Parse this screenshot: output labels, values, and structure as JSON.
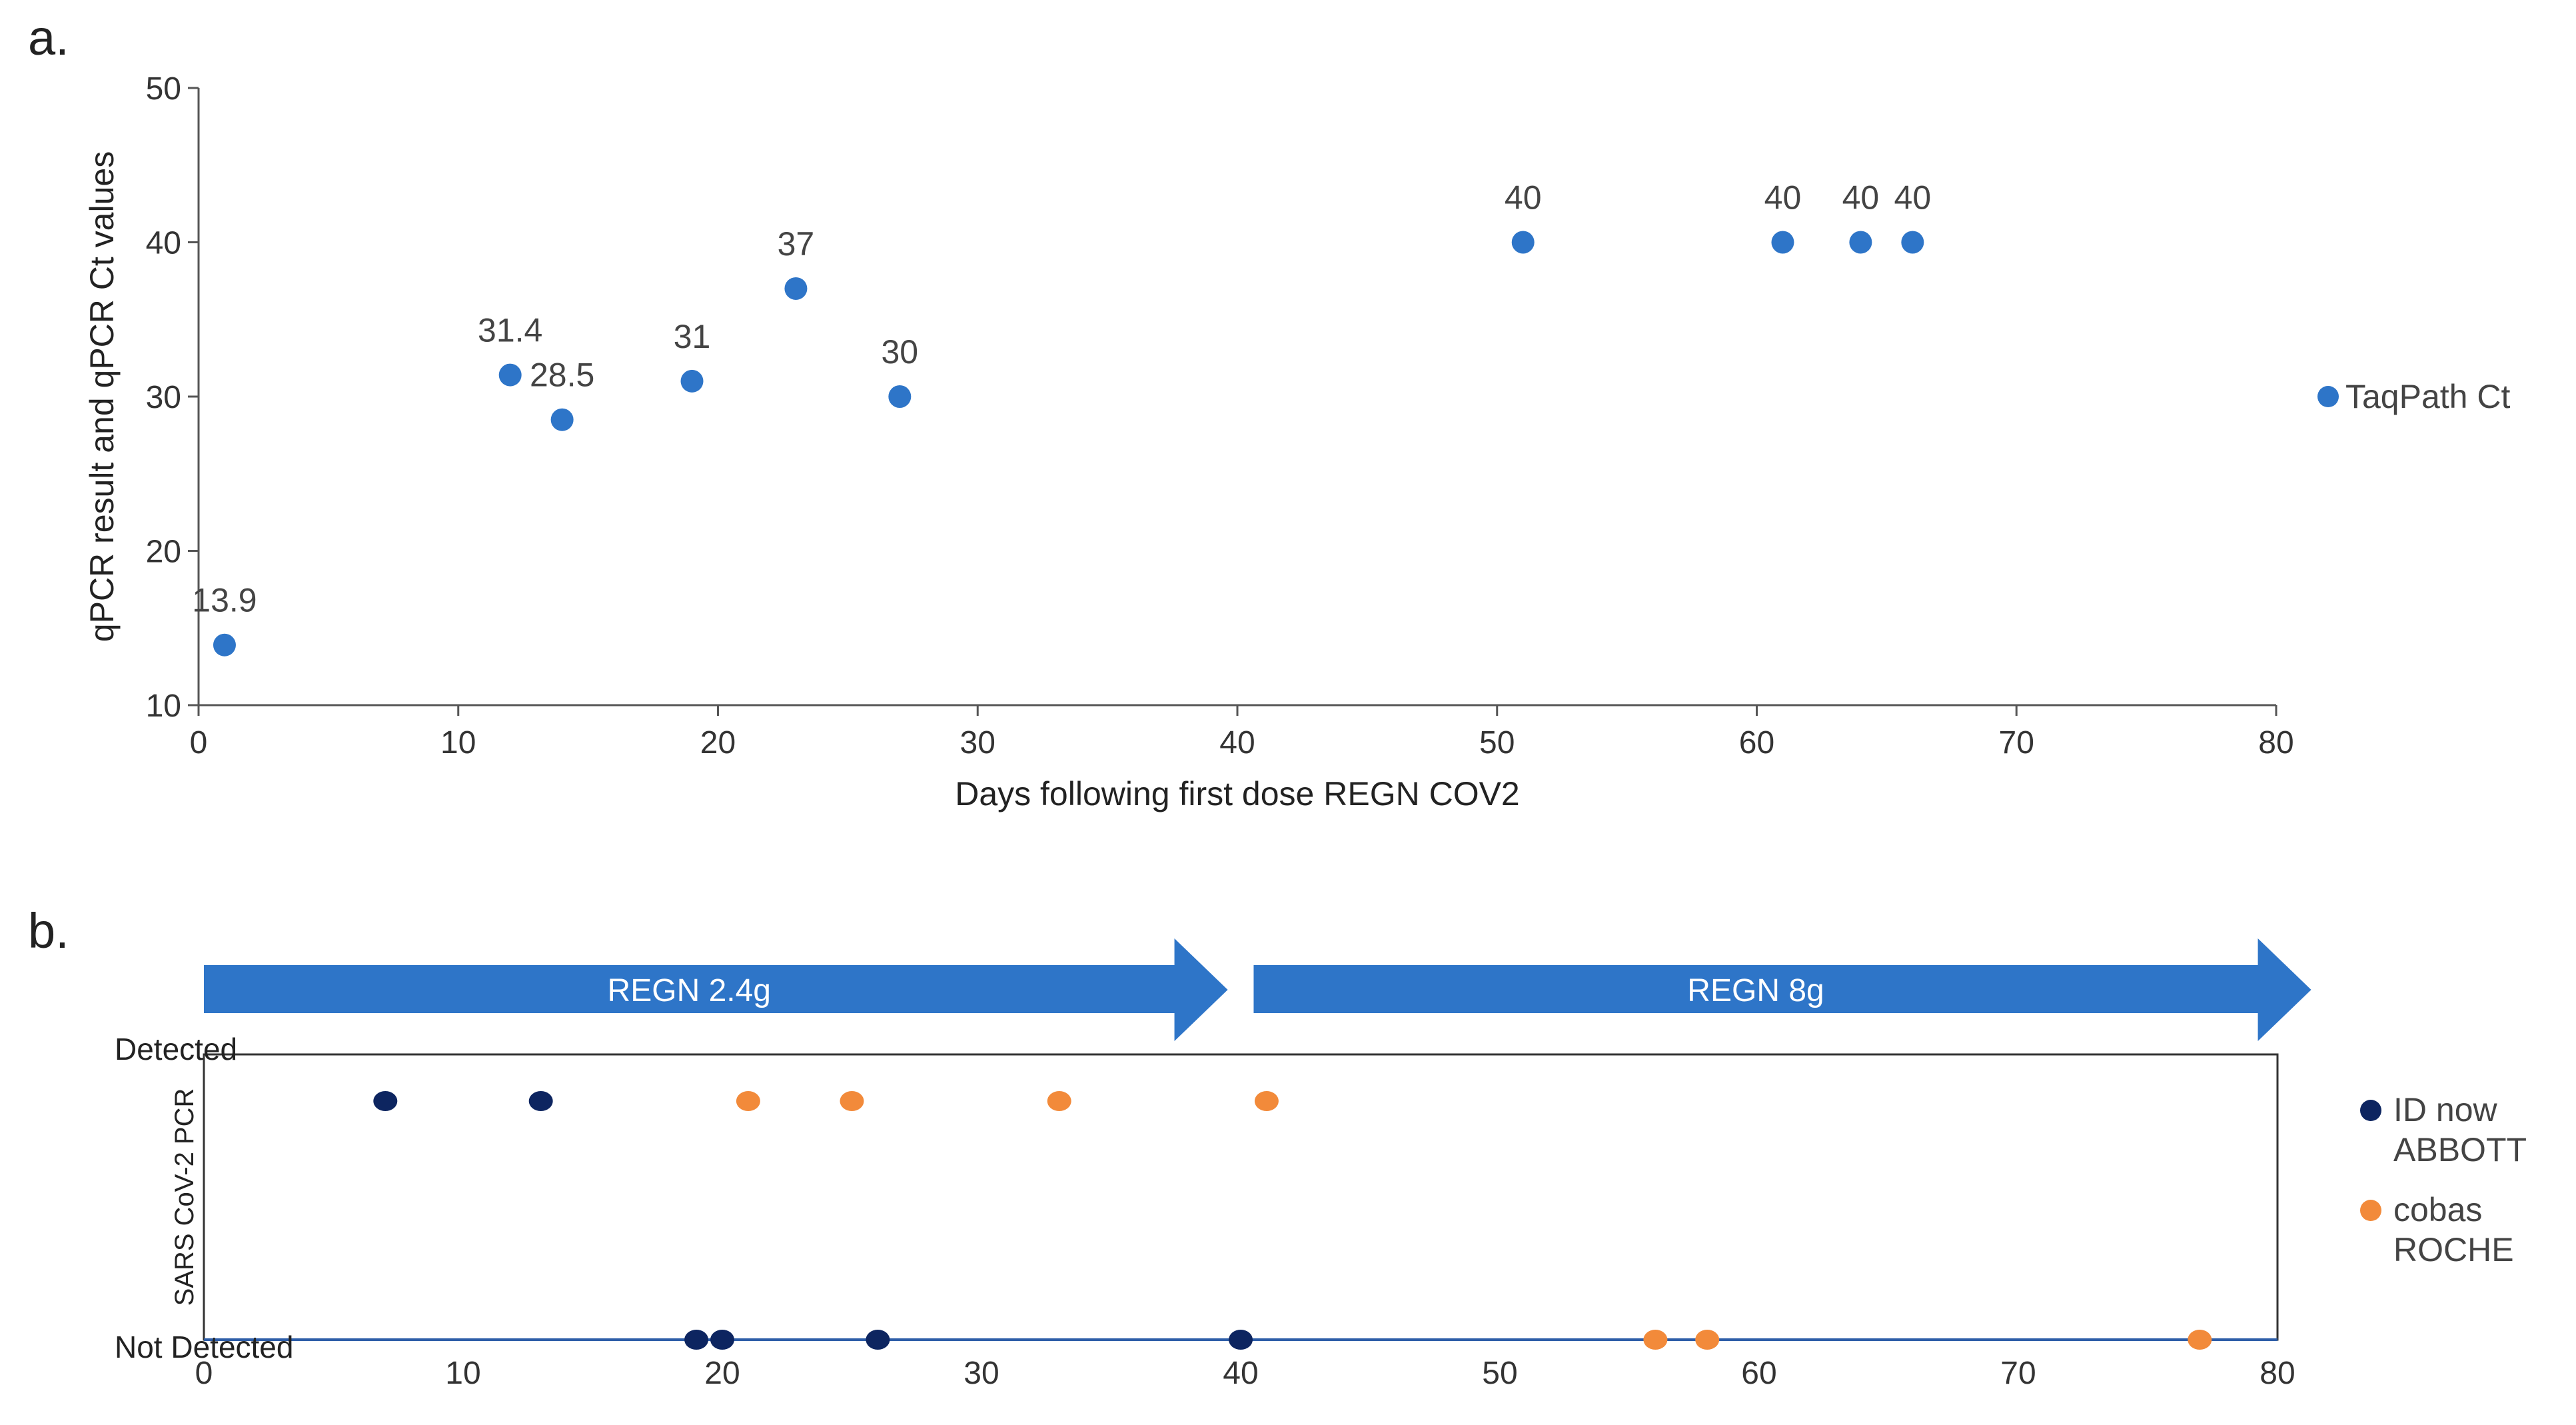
{
  "chart_data": [
    {
      "panel": "a.",
      "type": "scatter",
      "xlabel": "Days following first dose REGN COV2",
      "ylabel": "qPCR result and qPCR Ct values",
      "xlim": [
        0,
        80
      ],
      "ylim": [
        10,
        50
      ],
      "xticks": [
        0,
        10,
        20,
        30,
        40,
        50,
        60,
        70,
        80
      ],
      "yticks": [
        10,
        20,
        30,
        40,
        50
      ],
      "grid": false,
      "legend_position": "right",
      "series": [
        {
          "name": "TaqPath Ct",
          "color": "#2e75c8",
          "points": [
            {
              "x": 1,
              "y": 13.9,
              "label": "13.9"
            },
            {
              "x": 12,
              "y": 31.4,
              "label": "31.4"
            },
            {
              "x": 14,
              "y": 28.5,
              "label": "28.5"
            },
            {
              "x": 19,
              "y": 31,
              "label": "31"
            },
            {
              "x": 23,
              "y": 37,
              "label": "37"
            },
            {
              "x": 27,
              "y": 30,
              "label": "30"
            },
            {
              "x": 51,
              "y": 40,
              "label": "40"
            },
            {
              "x": 61,
              "y": 40,
              "label": "40"
            },
            {
              "x": 64,
              "y": 40,
              "label": "40"
            },
            {
              "x": 66,
              "y": 40,
              "label": "40"
            }
          ]
        }
      ]
    },
    {
      "panel": "b.",
      "type": "scatter",
      "xlim": [
        0,
        80
      ],
      "xticks": [
        0,
        10,
        20,
        30,
        40,
        50,
        60,
        70,
        80
      ],
      "ylabel": "SARS CoV-2 PCR",
      "categories": [
        "Detected",
        "Not Detected"
      ],
      "legend_position": "right",
      "arrows": [
        {
          "label": "REGN 2.4g",
          "start": 0,
          "end": 39.5,
          "color": "#2e75c8"
        },
        {
          "label": "REGN 8g",
          "start": 40.5,
          "end": 81.3,
          "color": "#2e75c8"
        }
      ],
      "series": [
        {
          "name": "ID now",
          "name_line2": "ABBOTT",
          "color": "#0d2560",
          "points": [
            {
              "x": 7,
              "y": "Detected"
            },
            {
              "x": 13,
              "y": "Detected"
            },
            {
              "x": 19,
              "y": "Not Detected"
            },
            {
              "x": 20,
              "y": "Not Detected"
            },
            {
              "x": 26,
              "y": "Not Detected"
            },
            {
              "x": 40,
              "y": "Not Detected"
            }
          ]
        },
        {
          "name": "cobas",
          "name_line2": "ROCHE",
          "color": "#f28a3a",
          "points": [
            {
              "x": 21,
              "y": "Detected"
            },
            {
              "x": 25,
              "y": "Detected"
            },
            {
              "x": 33,
              "y": "Detected"
            },
            {
              "x": 41,
              "y": "Detected"
            },
            {
              "x": 56,
              "y": "Not Detected"
            },
            {
              "x": 58,
              "y": "Not Detected"
            },
            {
              "x": 77,
              "y": "Not Detected"
            }
          ]
        }
      ]
    }
  ]
}
